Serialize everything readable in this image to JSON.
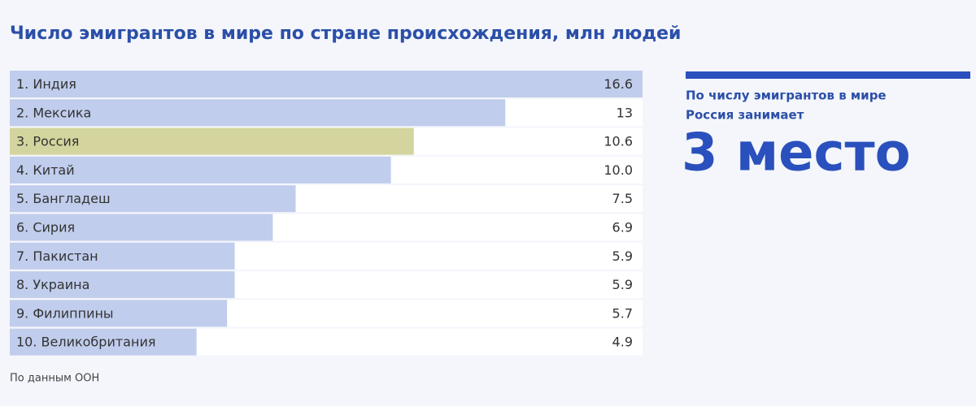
{
  "chart_data": {
    "type": "bar",
    "title": "Число эмигрантов в мире по стране происхождения, млн людей",
    "categories": [
      "1. Индия",
      "2. Мексика",
      "3. Россия",
      "4. Китай",
      "5. Бангладеш",
      "6. Сирия",
      "7. Пакистан",
      "8. Украина",
      "9. Филиппины",
      "10. Великобритания"
    ],
    "values": [
      16.6,
      13,
      10.6,
      10,
      7.5,
      6.9,
      5.9,
      5.9,
      5.7,
      4.9
    ],
    "value_labels": [
      "16.6",
      "13",
      "10.6",
      "10.0",
      "7.5",
      "6.9",
      "5.9",
      "5.9",
      "5.7",
      "4.9"
    ],
    "colors": [
      "#c0cdec",
      "#c0cdec",
      "#d4d59e",
      "#c0cdec",
      "#c0cdec",
      "#c0cdec",
      "#c0cdec",
      "#c0cdec",
      "#c0cdec",
      "#c0cdec"
    ],
    "side_text": [
      "По числу эмигрантов в мире",
      "Россия занимает"
    ],
    "big_text": "3 место",
    "source": "По данным ООН"
  }
}
